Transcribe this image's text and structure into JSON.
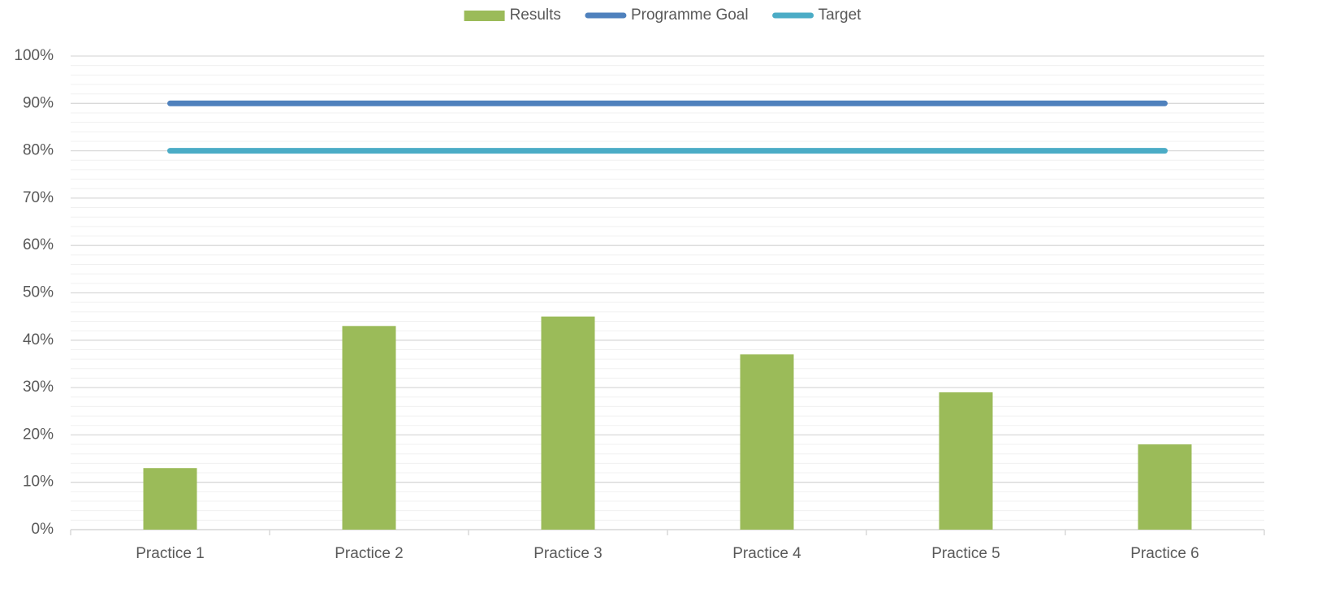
{
  "chart_data": {
    "type": "bar",
    "categories": [
      "Practice 1",
      "Practice 2",
      "Practice 3",
      "Practice 4",
      "Practice 5",
      "Practice 6"
    ],
    "series": [
      {
        "name": "Results",
        "type": "bar",
        "color": "#9bbb59",
        "values": [
          13,
          43,
          45,
          37,
          29,
          18
        ]
      },
      {
        "name": "Programme Goal",
        "type": "line",
        "color": "#4f81bd",
        "values": [
          90,
          90,
          90,
          90,
          90,
          90
        ]
      },
      {
        "name": "Target",
        "type": "line",
        "color": "#4bacc6",
        "values": [
          80,
          80,
          80,
          80,
          80,
          80
        ]
      }
    ],
    "ylim": [
      0,
      100
    ],
    "yticks": [
      {
        "value": 0,
        "label": "0%"
      },
      {
        "value": 10,
        "label": "10%"
      },
      {
        "value": 20,
        "label": "20%"
      },
      {
        "value": 30,
        "label": "30%"
      },
      {
        "value": 40,
        "label": "40%"
      },
      {
        "value": 50,
        "label": "50%"
      },
      {
        "value": 60,
        "label": "60%"
      },
      {
        "value": 70,
        "label": "70%"
      },
      {
        "value": 80,
        "label": "80%"
      },
      {
        "value": 90,
        "label": "90%"
      },
      {
        "value": 100,
        "label": "100%"
      }
    ],
    "minor_yticks": [
      2,
      4,
      6,
      8,
      12,
      14,
      16,
      18,
      22,
      24,
      26,
      28,
      32,
      34,
      36,
      38,
      42,
      44,
      46,
      48,
      52,
      54,
      56,
      58,
      62,
      64,
      66,
      68,
      72,
      74,
      76,
      78,
      82,
      84,
      86,
      88,
      92,
      94,
      96,
      98
    ],
    "grid": true,
    "legend": "top"
  }
}
